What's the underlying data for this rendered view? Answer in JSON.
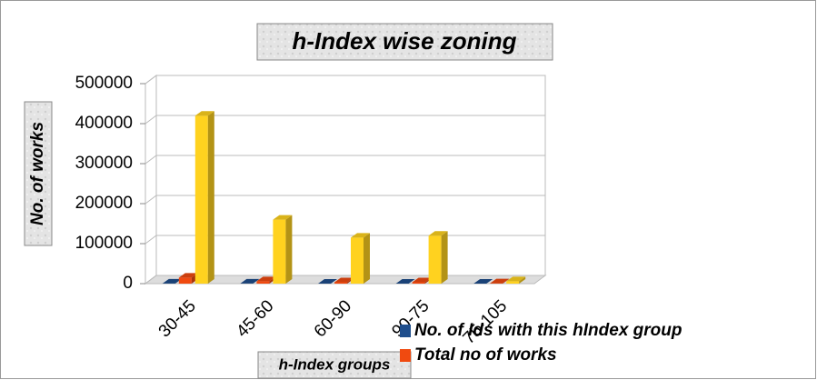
{
  "chart_data": {
    "type": "bar3d",
    "title": "h-Index wise zoning",
    "ylabel": "No. of works",
    "xlabel": "h-Index groups",
    "categories": [
      "30-45",
      "45-60",
      "60-90",
      "90-75",
      "75-105"
    ],
    "series": [
      {
        "name": "No. of Ids with this hIndex group",
        "color": "#1f4e8c",
        "values": [
          300,
          150,
          100,
          100,
          20
        ]
      },
      {
        "name": "Total no of works",
        "color": "#f04a10",
        "values": [
          15000,
          6000,
          3500,
          3500,
          800
        ]
      },
      {
        "color": "#ffd21f",
        "values": [
          420000,
          160000,
          115000,
          120000,
          6000
        ]
      }
    ],
    "ylim": [
      0,
      500000
    ],
    "yticks": [
      0,
      100000,
      200000,
      300000,
      400000,
      500000
    ],
    "grid": true
  }
}
